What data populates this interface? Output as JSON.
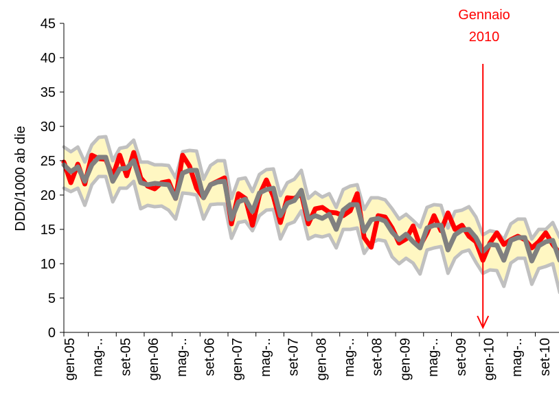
{
  "chart_data": {
    "type": "line",
    "ylabel": "DDD/1000 ab die",
    "ylim": [
      0,
      45
    ],
    "yticks": [
      0,
      5,
      10,
      15,
      20,
      25,
      30,
      35,
      40,
      45
    ],
    "x_tick_labels": [
      "gen-05",
      "mag-..",
      "set-05",
      "gen-06",
      "mag-..",
      "set-06",
      "gen-07",
      "mag-..",
      "set-07",
      "gen-08",
      "mag-..",
      "set-08",
      "gen-09",
      "mag-..",
      "set-09",
      "gen-10",
      "mag-..",
      "set-10"
    ],
    "x_months": [
      "2005-01",
      "2005-02",
      "2005-03",
      "2005-04",
      "2005-05",
      "2005-06",
      "2005-07",
      "2005-08",
      "2005-09",
      "2005-10",
      "2005-11",
      "2005-12",
      "2006-01",
      "2006-02",
      "2006-03",
      "2006-04",
      "2006-05",
      "2006-06",
      "2006-07",
      "2006-08",
      "2006-09",
      "2006-10",
      "2006-11",
      "2006-12",
      "2007-01",
      "2007-02",
      "2007-03",
      "2007-04",
      "2007-05",
      "2007-06",
      "2007-07",
      "2007-08",
      "2007-09",
      "2007-10",
      "2007-11",
      "2007-12",
      "2008-01",
      "2008-02",
      "2008-03",
      "2008-04",
      "2008-05",
      "2008-06",
      "2008-07",
      "2008-08",
      "2008-09",
      "2008-10",
      "2008-11",
      "2008-12",
      "2009-01",
      "2009-02",
      "2009-03",
      "2009-04",
      "2009-05",
      "2009-06",
      "2009-07",
      "2009-08",
      "2009-09",
      "2009-10",
      "2009-11",
      "2009-12",
      "2010-01",
      "2010-02",
      "2010-03",
      "2010-04",
      "2010-05",
      "2010-06",
      "2010-07",
      "2010-08",
      "2010-09",
      "2010-10",
      "2010-11",
      "2010-12"
    ],
    "series": [
      {
        "role": "observed",
        "color": "#ff0000",
        "values": [
          24.8,
          21.8,
          24.5,
          21.6,
          25.8,
          25.3,
          25.2,
          22.7,
          25.8,
          22.8,
          26.2,
          22.5,
          21.3,
          20.9,
          21.8,
          22.0,
          19.5,
          25.8,
          24.2,
          21.0,
          19.6,
          21.5,
          22.0,
          22.5,
          15.8,
          20.2,
          19.5,
          15.6,
          20.0,
          22.2,
          19.8,
          16.0,
          19.6,
          19.5,
          20.2,
          15.8,
          18.0,
          18.2,
          17.5,
          17.4,
          17.0,
          17.7,
          20.2,
          13.8,
          12.4,
          17.0,
          16.8,
          15.2,
          13.0,
          13.6,
          15.5,
          12.6,
          14.5,
          17.0,
          14.8,
          17.4,
          15.0,
          15.6,
          14.0,
          13.2,
          10.5,
          13.0,
          14.5,
          12.8,
          13.5,
          14.0,
          13.5,
          12.3,
          13.2,
          14.5,
          12.8,
          11.5
        ]
      },
      {
        "role": "fitted",
        "color": "#808080",
        "values": [
          24.4,
          23.4,
          24.1,
          22.0,
          24.4,
          25.5,
          25.5,
          22.0,
          23.8,
          23.9,
          25.0,
          21.8,
          21.5,
          21.7,
          21.6,
          21.5,
          19.5,
          23.2,
          23.6,
          23.6,
          19.6,
          21.5,
          21.9,
          22.0,
          16.5,
          19.0,
          19.4,
          17.6,
          20.3,
          20.8,
          21.0,
          17.0,
          18.8,
          19.2,
          20.7,
          16.5,
          17.0,
          16.6,
          17.2,
          15.0,
          17.8,
          18.6,
          18.6,
          14.7,
          16.4,
          16.6,
          16.2,
          14.6,
          13.5,
          14.3,
          13.2,
          12.3,
          15.2,
          15.6,
          15.6,
          12.0,
          14.2,
          14.9,
          15.0,
          13.8,
          11.8,
          12.8,
          12.7,
          10.5,
          13.4,
          13.8,
          13.8,
          10.4,
          12.6,
          13.2,
          13.4,
          10.5
        ]
      },
      {
        "role": "upper-bound",
        "color": "#c0c0c0",
        "values": [
          27.0,
          26.3,
          27.0,
          24.8,
          27.3,
          28.4,
          28.5,
          25.0,
          26.8,
          27.0,
          28.0,
          24.8,
          24.8,
          24.4,
          24.4,
          24.3,
          22.5,
          26.3,
          26.5,
          26.4,
          22.3,
          24.3,
          25.0,
          25.0,
          19.5,
          22.3,
          22.5,
          20.5,
          23.0,
          23.7,
          23.8,
          19.9,
          21.8,
          22.3,
          23.6,
          19.5,
          20.4,
          19.7,
          20.2,
          18.2,
          20.8,
          21.3,
          21.5,
          17.9,
          19.6,
          19.6,
          19.3,
          18.0,
          16.5,
          17.2,
          16.3,
          15.3,
          18.2,
          18.6,
          18.5,
          15.2,
          17.6,
          17.8,
          18.3,
          16.8,
          14.2,
          14.8,
          14.6,
          13.5,
          15.8,
          16.5,
          16.5,
          13.6,
          15.0,
          15.0,
          16.0,
          13.8
        ]
      },
      {
        "role": "lower-bound",
        "color": "#c0c0c0",
        "values": [
          21.0,
          20.5,
          21.0,
          18.5,
          21.5,
          22.7,
          22.7,
          19.0,
          21.0,
          21.0,
          22.0,
          18.0,
          18.5,
          18.3,
          18.4,
          17.8,
          16.5,
          20.3,
          20.2,
          20.0,
          16.5,
          18.6,
          18.7,
          18.7,
          13.7,
          16.0,
          16.2,
          14.8,
          17.0,
          17.8,
          17.9,
          13.6,
          15.7,
          16.1,
          17.7,
          13.6,
          14.1,
          13.9,
          14.2,
          12.3,
          15.0,
          15.0,
          15.2,
          11.5,
          13.0,
          13.5,
          13.3,
          11.0,
          10.0,
          10.8,
          10.1,
          8.5,
          12.0,
          12.3,
          12.5,
          8.6,
          10.8,
          11.7,
          12.0,
          10.2,
          8.6,
          9.1,
          9.0,
          6.7,
          10.1,
          10.8,
          10.8,
          7.0,
          9.3,
          9.6,
          10.0,
          5.8
        ]
      }
    ],
    "annotation": {
      "label_line1": "Gennaio",
      "label_line2": "2010",
      "at_month": "2010-01",
      "color": "#ff0000"
    }
  }
}
